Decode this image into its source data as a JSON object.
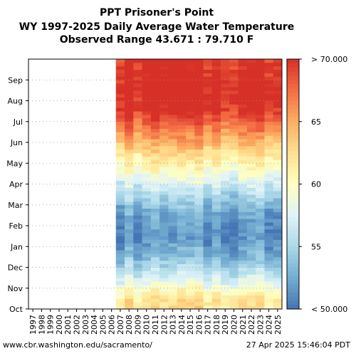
{
  "title": {
    "line1": "PPT Prisoner's Point",
    "line2": "WY 1997-2025 Daily Average Water Temperature",
    "line3": "Observed Range 43.671 : 79.710 F"
  },
  "footer": {
    "url": "www.cbr.washington.edu/sacramento/",
    "timestamp": "27 Apr 2025 15:46:04 PDT"
  },
  "chart_data": {
    "type": "heatmap",
    "x_categories": [
      "1997",
      "1998",
      "1999",
      "2000",
      "2001",
      "2002",
      "2003",
      "2004",
      "2005",
      "2006",
      "2007",
      "2008",
      "2009",
      "2010",
      "2011",
      "2012",
      "2013",
      "2014",
      "2015",
      "2016",
      "2017",
      "2018",
      "2019",
      "2020",
      "2021",
      "2022",
      "2023",
      "2024",
      "2025"
    ],
    "y_months": [
      "Oct",
      "Nov",
      "Dec",
      "Jan",
      "Feb",
      "Mar",
      "Apr",
      "May",
      "Jun",
      "Jul",
      "Aug",
      "Sep"
    ],
    "colorbar": {
      "min": 50,
      "max": 70,
      "ticks": [
        {
          "value": 70,
          "label": "> 70.000"
        },
        {
          "value": 65,
          "label": "65"
        },
        {
          "value": 60,
          "label": "60"
        },
        {
          "value": 55,
          "label": "55"
        },
        {
          "value": 50,
          "label": "< 50.000"
        }
      ],
      "palette": [
        "#4575b4",
        "#74add1",
        "#abd9e9",
        "#e0f3f8",
        "#ffffbf",
        "#fee090",
        "#fdae61",
        "#f46d43",
        "#d73027"
      ]
    },
    "monthly_mean_temperature_F": [
      62,
      57,
      53,
      51,
      52,
      55,
      59,
      62.5,
      66,
      70,
      71,
      70
    ],
    "missing": {
      "1997": [
        0,
        1,
        2,
        3,
        4,
        5,
        6,
        7,
        8,
        9,
        10,
        11
      ],
      "1998": [
        0,
        1,
        2,
        3,
        4,
        5,
        6,
        7,
        8,
        9,
        10,
        11
      ],
      "1999": [
        0,
        1,
        2,
        3,
        4,
        5,
        6,
        7,
        8,
        9,
        10,
        11
      ],
      "2000": [
        0,
        1,
        2,
        3,
        4,
        5,
        6,
        7,
        8,
        9,
        10,
        11
      ],
      "2001": [
        0,
        1,
        2,
        3,
        4,
        5,
        6,
        7,
        8,
        9,
        10,
        11
      ],
      "2002": [
        0,
        1,
        2,
        3,
        4,
        5,
        6,
        7,
        8,
        9,
        10,
        11
      ],
      "2003": [
        0,
        1,
        2,
        3,
        4,
        5,
        6,
        7,
        8,
        9,
        10,
        11
      ],
      "2004": [
        0,
        1,
        2,
        3,
        4,
        5,
        6,
        7,
        8,
        9,
        10,
        11
      ],
      "2005": [
        0,
        1,
        2,
        3,
        4,
        5,
        6,
        7,
        8,
        9,
        10,
        11
      ],
      "2006": [
        0,
        1,
        2,
        3,
        4,
        5,
        6,
        7,
        8,
        9,
        10,
        11
      ]
    },
    "grid": "dotted horizontal",
    "legend": "right"
  }
}
